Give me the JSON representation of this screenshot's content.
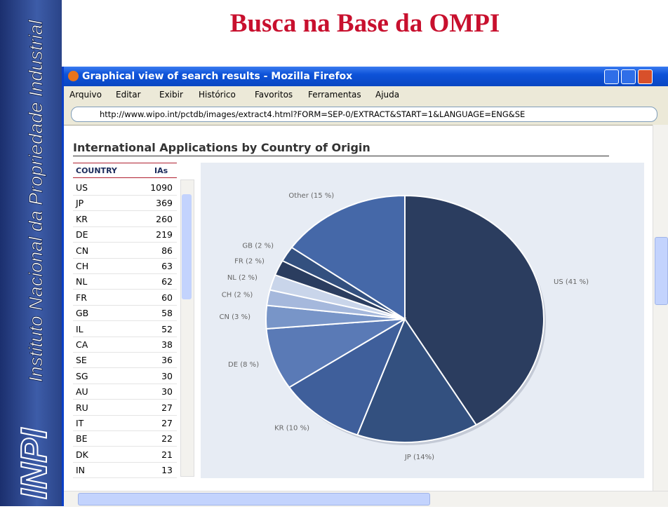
{
  "sidebar": {
    "text": "Instituto Nacional da Propriedade Industrial",
    "logo": "INPI"
  },
  "slide_title": "Busca na Base da OMPI",
  "browser": {
    "title": "Graphical view of search results - Mozilla Firefox",
    "menu": [
      "Arquivo",
      "Editar",
      "Exibir",
      "Histórico",
      "Favoritos",
      "Ferramentas",
      "Ajuda"
    ],
    "url": "http://www.wipo.int/pctdb/images/extract4.html?FORM=SEP-0/EXTRACT&START=1&LANGUAGE=ENG&SE"
  },
  "page": {
    "heading": "International Applications by Country of Origin",
    "table": {
      "columns": [
        "COUNTRY",
        "IAs"
      ],
      "rows": [
        [
          "US",
          "1090"
        ],
        [
          "JP",
          "369"
        ],
        [
          "KR",
          "260"
        ],
        [
          "DE",
          "219"
        ],
        [
          "CN",
          "86"
        ],
        [
          "CH",
          "63"
        ],
        [
          "NL",
          "62"
        ],
        [
          "FR",
          "60"
        ],
        [
          "GB",
          "58"
        ],
        [
          "IL",
          "52"
        ],
        [
          "CA",
          "38"
        ],
        [
          "SE",
          "36"
        ],
        [
          "SG",
          "30"
        ],
        [
          "AU",
          "30"
        ],
        [
          "RU",
          "27"
        ],
        [
          "IT",
          "27"
        ],
        [
          "BE",
          "22"
        ],
        [
          "DK",
          "21"
        ],
        [
          "IN",
          "13"
        ]
      ]
    }
  },
  "chart_data": {
    "type": "pie",
    "values": [
      41,
      14,
      10,
      8,
      3,
      2,
      2,
      2,
      2,
      15
    ],
    "value_labels": [
      "US (41 %)",
      "JP (14%)",
      "KR (10 %)",
      "DE (8 %)",
      "CN (3 %)",
      "CH (2 %)",
      "NL (2 %)",
      "FR (2 %)",
      "GB (2 %)",
      "Other (15 %)"
    ],
    "colors": [
      "#2b3d5f",
      "#33507f",
      "#3f5f9b",
      "#5a7ab6",
      "#7895c8",
      "#a5b8dc",
      "#c9d5ea",
      "#2b3d5f",
      "#33507f",
      "#4568a8"
    ]
  }
}
